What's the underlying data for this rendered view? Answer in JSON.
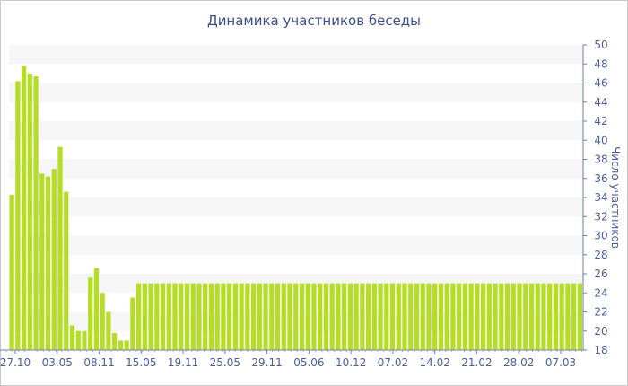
{
  "chart_data": {
    "type": "bar",
    "title": "Динамика участников беседы",
    "xlabel": "",
    "ylabel": "Число участников",
    "ylim": [
      18,
      50
    ],
    "yticks": [
      18,
      20,
      22,
      24,
      26,
      28,
      30,
      32,
      34,
      36,
      38,
      40,
      42,
      44,
      46,
      48,
      50
    ],
    "y_axis_side": "right",
    "grid": "alternating horizontal bands",
    "bar_color": "#b5dd26",
    "band_color": "#f6f6f6",
    "xtick_labels": [
      "27.10",
      "03.05",
      "08.11",
      "15.05",
      "19.11",
      "25.05",
      "29.11",
      "05.06",
      "10.12",
      "07.02",
      "14.02",
      "21.02",
      "28.02",
      "07.03"
    ],
    "values": [
      34.3,
      46.2,
      47.8,
      47.0,
      46.7,
      36.5,
      36.2,
      37.0,
      39.3,
      34.6,
      20.6,
      20.0,
      20.0,
      25.6,
      26.6,
      24.0,
      22.0,
      19.8,
      19.0,
      19.0,
      23.5,
      25.0,
      25.0,
      25.0,
      25.0,
      25.0,
      25.0,
      25.0,
      25.0,
      25.0,
      25.0,
      25.0,
      25.0,
      25.0,
      25.0,
      25.0,
      25.0,
      25.0,
      25.0,
      25.0,
      25.0,
      25.0,
      25.0,
      25.0,
      25.0,
      25.0,
      25.0,
      25.0,
      25.0,
      25.0,
      25.0,
      25.0,
      25.0,
      25.0,
      25.0,
      25.0,
      25.0,
      25.0,
      25.0,
      25.0,
      25.0,
      25.0,
      25.0,
      25.0,
      25.0,
      25.0,
      25.0,
      25.0,
      25.0,
      25.0,
      25.0,
      25.0,
      25.0,
      25.0,
      25.0,
      25.0,
      25.0,
      25.0,
      25.0,
      25.0,
      25.0,
      25.0,
      25.0,
      25.0,
      25.0,
      25.0,
      25.0,
      25.0,
      25.0,
      25.0,
      25.0,
      25.0,
      25.0,
      25.0,
      25.0
    ]
  }
}
